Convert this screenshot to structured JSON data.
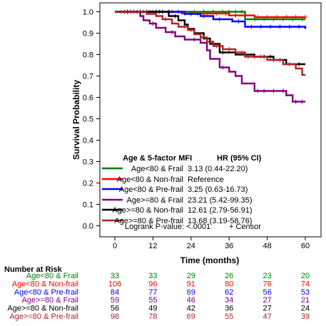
{
  "chart_data": {
    "type": "line",
    "step": true,
    "xlabel": "Time (months)",
    "ylabel": "Survival Probability",
    "xlim": [
      0,
      60
    ],
    "ylim": [
      0.0,
      1.0
    ],
    "x_ticks": [
      0,
      12,
      24,
      36,
      48,
      60
    ],
    "x_tick_labels": [
      "0",
      "12",
      "24",
      "36",
      "48",
      "60"
    ],
    "y_ticks": [
      0.0,
      0.1,
      0.2,
      0.3,
      0.4,
      0.5,
      0.6,
      0.7,
      0.8,
      0.9,
      1.0
    ],
    "y_tick_labels": [
      "0.0",
      "0.1",
      "0.2",
      "0.3",
      "0.4",
      "0.5",
      "0.6",
      "0.7",
      "0.8",
      "0.9",
      "1.0"
    ],
    "grid": false,
    "legend": {
      "placement": "bottom-inside",
      "header_group": "Age & 5-factor MFI",
      "header_hr": "HR (95% CI)",
      "entries": [
        {
          "label": "Age<80 & Frail",
          "hr": "3.13 (0.44-22.20)"
        },
        {
          "label": "Age<80 & Non-frail",
          "hr": "Reference"
        },
        {
          "label": "Age<80 & Pre-frail",
          "hr": "3.25 (0.63-16.73)"
        },
        {
          "label": "Age>=80 & Frail",
          "hr": "23.21 (5.42-99.35)"
        },
        {
          "label": "Age>=80 & Non-frail",
          "hr": "12.61 (2.79-56.91)"
        },
        {
          "label": "Age>=80 & Pre-frail",
          "hr": "13.68 (3.19-58.76)"
        }
      ],
      "pvalue_text": "Logrank P-value: <.0001",
      "censor_text": "+ Censor"
    },
    "series": [
      {
        "name": "Age<80 & Frail",
        "color": "#008000",
        "steps": [
          [
            0,
            1.0
          ],
          [
            41,
            0.965
          ],
          [
            60,
            0.965
          ]
        ],
        "censors": [
          2,
          5,
          8,
          11,
          13,
          17,
          20,
          25,
          28,
          31,
          34,
          36,
          38,
          40,
          44,
          47,
          50,
          53,
          56,
          59
        ]
      },
      {
        "name": "Age<80 & Non-frail",
        "color": "#ff0000",
        "steps": [
          [
            0,
            1.0
          ],
          [
            21,
            0.992
          ],
          [
            36,
            0.983
          ],
          [
            44,
            0.975
          ],
          [
            60,
            0.975
          ]
        ],
        "censors": [
          3,
          6,
          9,
          12,
          14,
          18,
          22,
          26,
          29,
          32,
          35,
          38,
          41,
          45,
          48,
          51,
          54,
          57,
          60
        ]
      },
      {
        "name": "Age<80 & Pre-frail",
        "color": "#0000ff",
        "steps": [
          [
            0,
            1.0
          ],
          [
            22,
            0.99
          ],
          [
            27,
            0.98
          ],
          [
            31,
            0.965
          ],
          [
            37,
            0.955
          ],
          [
            41,
            0.93
          ],
          [
            60,
            0.92
          ]
        ],
        "censors": [
          4,
          7,
          10,
          14,
          17,
          20,
          24,
          28,
          33,
          39,
          43,
          46,
          49,
          52,
          55,
          58
        ]
      },
      {
        "name": "Age>=80 & Frail",
        "color": "#800080",
        "steps": [
          [
            0,
            1.0
          ],
          [
            8,
            0.98
          ],
          [
            9,
            0.96
          ],
          [
            11,
            0.945
          ],
          [
            13,
            0.925
          ],
          [
            16,
            0.905
          ],
          [
            19,
            0.885
          ],
          [
            22,
            0.87
          ],
          [
            27,
            0.855
          ],
          [
            29,
            0.82
          ],
          [
            30,
            0.78
          ],
          [
            33,
            0.74
          ],
          [
            36,
            0.72
          ],
          [
            38,
            0.7
          ],
          [
            40,
            0.665
          ],
          [
            44,
            0.63
          ],
          [
            54,
            0.61
          ],
          [
            56,
            0.58
          ],
          [
            60,
            0.58
          ]
        ],
        "censors": [
          5,
          12,
          18,
          25,
          34,
          45,
          47,
          50,
          53,
          57,
          59
        ]
      },
      {
        "name": "Age>=80 & Non-frail",
        "color": "#000000",
        "steps": [
          [
            0,
            1.0
          ],
          [
            17,
            0.98
          ],
          [
            20,
            0.96
          ],
          [
            22,
            0.94
          ],
          [
            23,
            0.92
          ],
          [
            25,
            0.9
          ],
          [
            28,
            0.875
          ],
          [
            30,
            0.85
          ],
          [
            33,
            0.81
          ],
          [
            38,
            0.8
          ],
          [
            44,
            0.79
          ],
          [
            50,
            0.775
          ],
          [
            54,
            0.755
          ],
          [
            60,
            0.755
          ]
        ],
        "censors": [
          4,
          8,
          13,
          15,
          19,
          34,
          41,
          47,
          49,
          58
        ]
      },
      {
        "name": "Age>=80 & Pre-frail",
        "color": "#b22222",
        "steps": [
          [
            0,
            1.0
          ],
          [
            10,
            0.99
          ],
          [
            13,
            0.98
          ],
          [
            15,
            0.965
          ],
          [
            18,
            0.945
          ],
          [
            20,
            0.93
          ],
          [
            23,
            0.915
          ],
          [
            25,
            0.895
          ],
          [
            27,
            0.88
          ],
          [
            29,
            0.86
          ],
          [
            31,
            0.84
          ],
          [
            34,
            0.825
          ],
          [
            38,
            0.81
          ],
          [
            41,
            0.79
          ],
          [
            48,
            0.775
          ],
          [
            53,
            0.755
          ],
          [
            57,
            0.735
          ],
          [
            59,
            0.705
          ],
          [
            60,
            0.705
          ]
        ],
        "censors": [
          3,
          6,
          9,
          16,
          22,
          24,
          28,
          32,
          36,
          40,
          42,
          44,
          46,
          50,
          52,
          55
        ]
      }
    ]
  },
  "risk_table": {
    "title": "Number at Risk",
    "rows": [
      {
        "label": "Age<80 & Frail",
        "color": "#008000",
        "values": [
          "33",
          "33",
          "29",
          "26",
          "23",
          "20"
        ]
      },
      {
        "label": "Age<80 & Non-frail",
        "color": "#ff0000",
        "values": [
          "106",
          "96",
          "91",
          "80",
          "76",
          "74"
        ]
      },
      {
        "label": "Age<80 & Pre-frail",
        "color": "#0000ff",
        "values": [
          "84",
          "77",
          "69",
          "62",
          "56",
          "53"
        ]
      },
      {
        "label": "Age>=80 & Frail",
        "color": "#800080",
        "values": [
          "59",
          "55",
          "46",
          "34",
          "27",
          "21"
        ]
      },
      {
        "label": "Age>=80 & Non-frail",
        "color": "#000000",
        "values": [
          "56",
          "49",
          "42",
          "36",
          "27",
          "24"
        ]
      },
      {
        "label": "Age>=80 & Pre-frail",
        "color": "#b22222",
        "values": [
          "98",
          "78",
          "69",
          "55",
          "47",
          "39"
        ]
      }
    ]
  }
}
